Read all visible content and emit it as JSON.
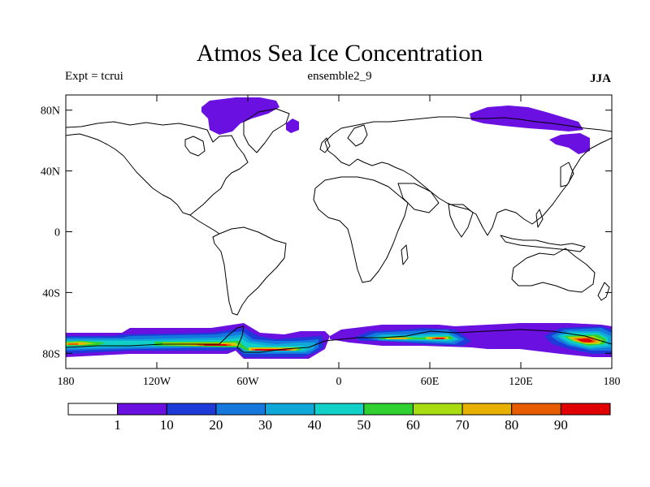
{
  "chart_data": {
    "type": "heatmap",
    "title": "Atmos Sea Ice Concentration",
    "left_label": "Expt = tcrui",
    "center_label": "ensemble2_9",
    "right_label": "JJA",
    "x_ticks": [
      "180",
      "120W",
      "60W",
      "0",
      "60E",
      "120E",
      "180"
    ],
    "x_tick_values": [
      -180,
      -120,
      -60,
      0,
      60,
      120,
      180
    ],
    "y_ticks": [
      "80N",
      "40N",
      "0",
      "40S",
      "80S"
    ],
    "y_tick_values": [
      80,
      40,
      0,
      -40,
      -80
    ],
    "xlim": [
      -180,
      180
    ],
    "ylim": [
      -90,
      90
    ],
    "colorbar": {
      "labels": [
        "1",
        "10",
        "20",
        "30",
        "40",
        "50",
        "60",
        "70",
        "80",
        "90"
      ],
      "colors": [
        "#ffffff",
        "#6a10e0",
        "#1e3ad8",
        "#1478dc",
        "#10a8d8",
        "#10d0c8",
        "#30d030",
        "#a8dc10",
        "#e8b000",
        "#e85c00",
        "#e00000"
      ]
    },
    "regions": [
      {
        "name": "canadian-arctic",
        "lon": [
          -90,
          -40
        ],
        "lat": [
          72,
          90
        ],
        "max": 10
      },
      {
        "name": "svalbard-patch",
        "lon": [
          -35,
          -25
        ],
        "lat": [
          73,
          77
        ],
        "max": 10
      },
      {
        "name": "siberian-arctic",
        "lon": [
          90,
          165
        ],
        "lat": [
          70,
          84
        ],
        "max": 10
      },
      {
        "name": "okhotsk-patch",
        "lon": [
          140,
          158
        ],
        "lat": [
          53,
          62
        ],
        "max": 10
      },
      {
        "name": "antarctic-ross-bellingshausen",
        "lon": [
          -180,
          -65
        ],
        "lat": [
          -90,
          -66
        ],
        "max": 90
      },
      {
        "name": "antarctic-weddell",
        "lon": [
          -65,
          -5
        ],
        "lat": [
          -90,
          -66
        ],
        "max": 90
      },
      {
        "name": "antarctic-east",
        "lon": [
          -5,
          180
        ],
        "lat": [
          -90,
          -65
        ],
        "max": 90
      }
    ]
  }
}
